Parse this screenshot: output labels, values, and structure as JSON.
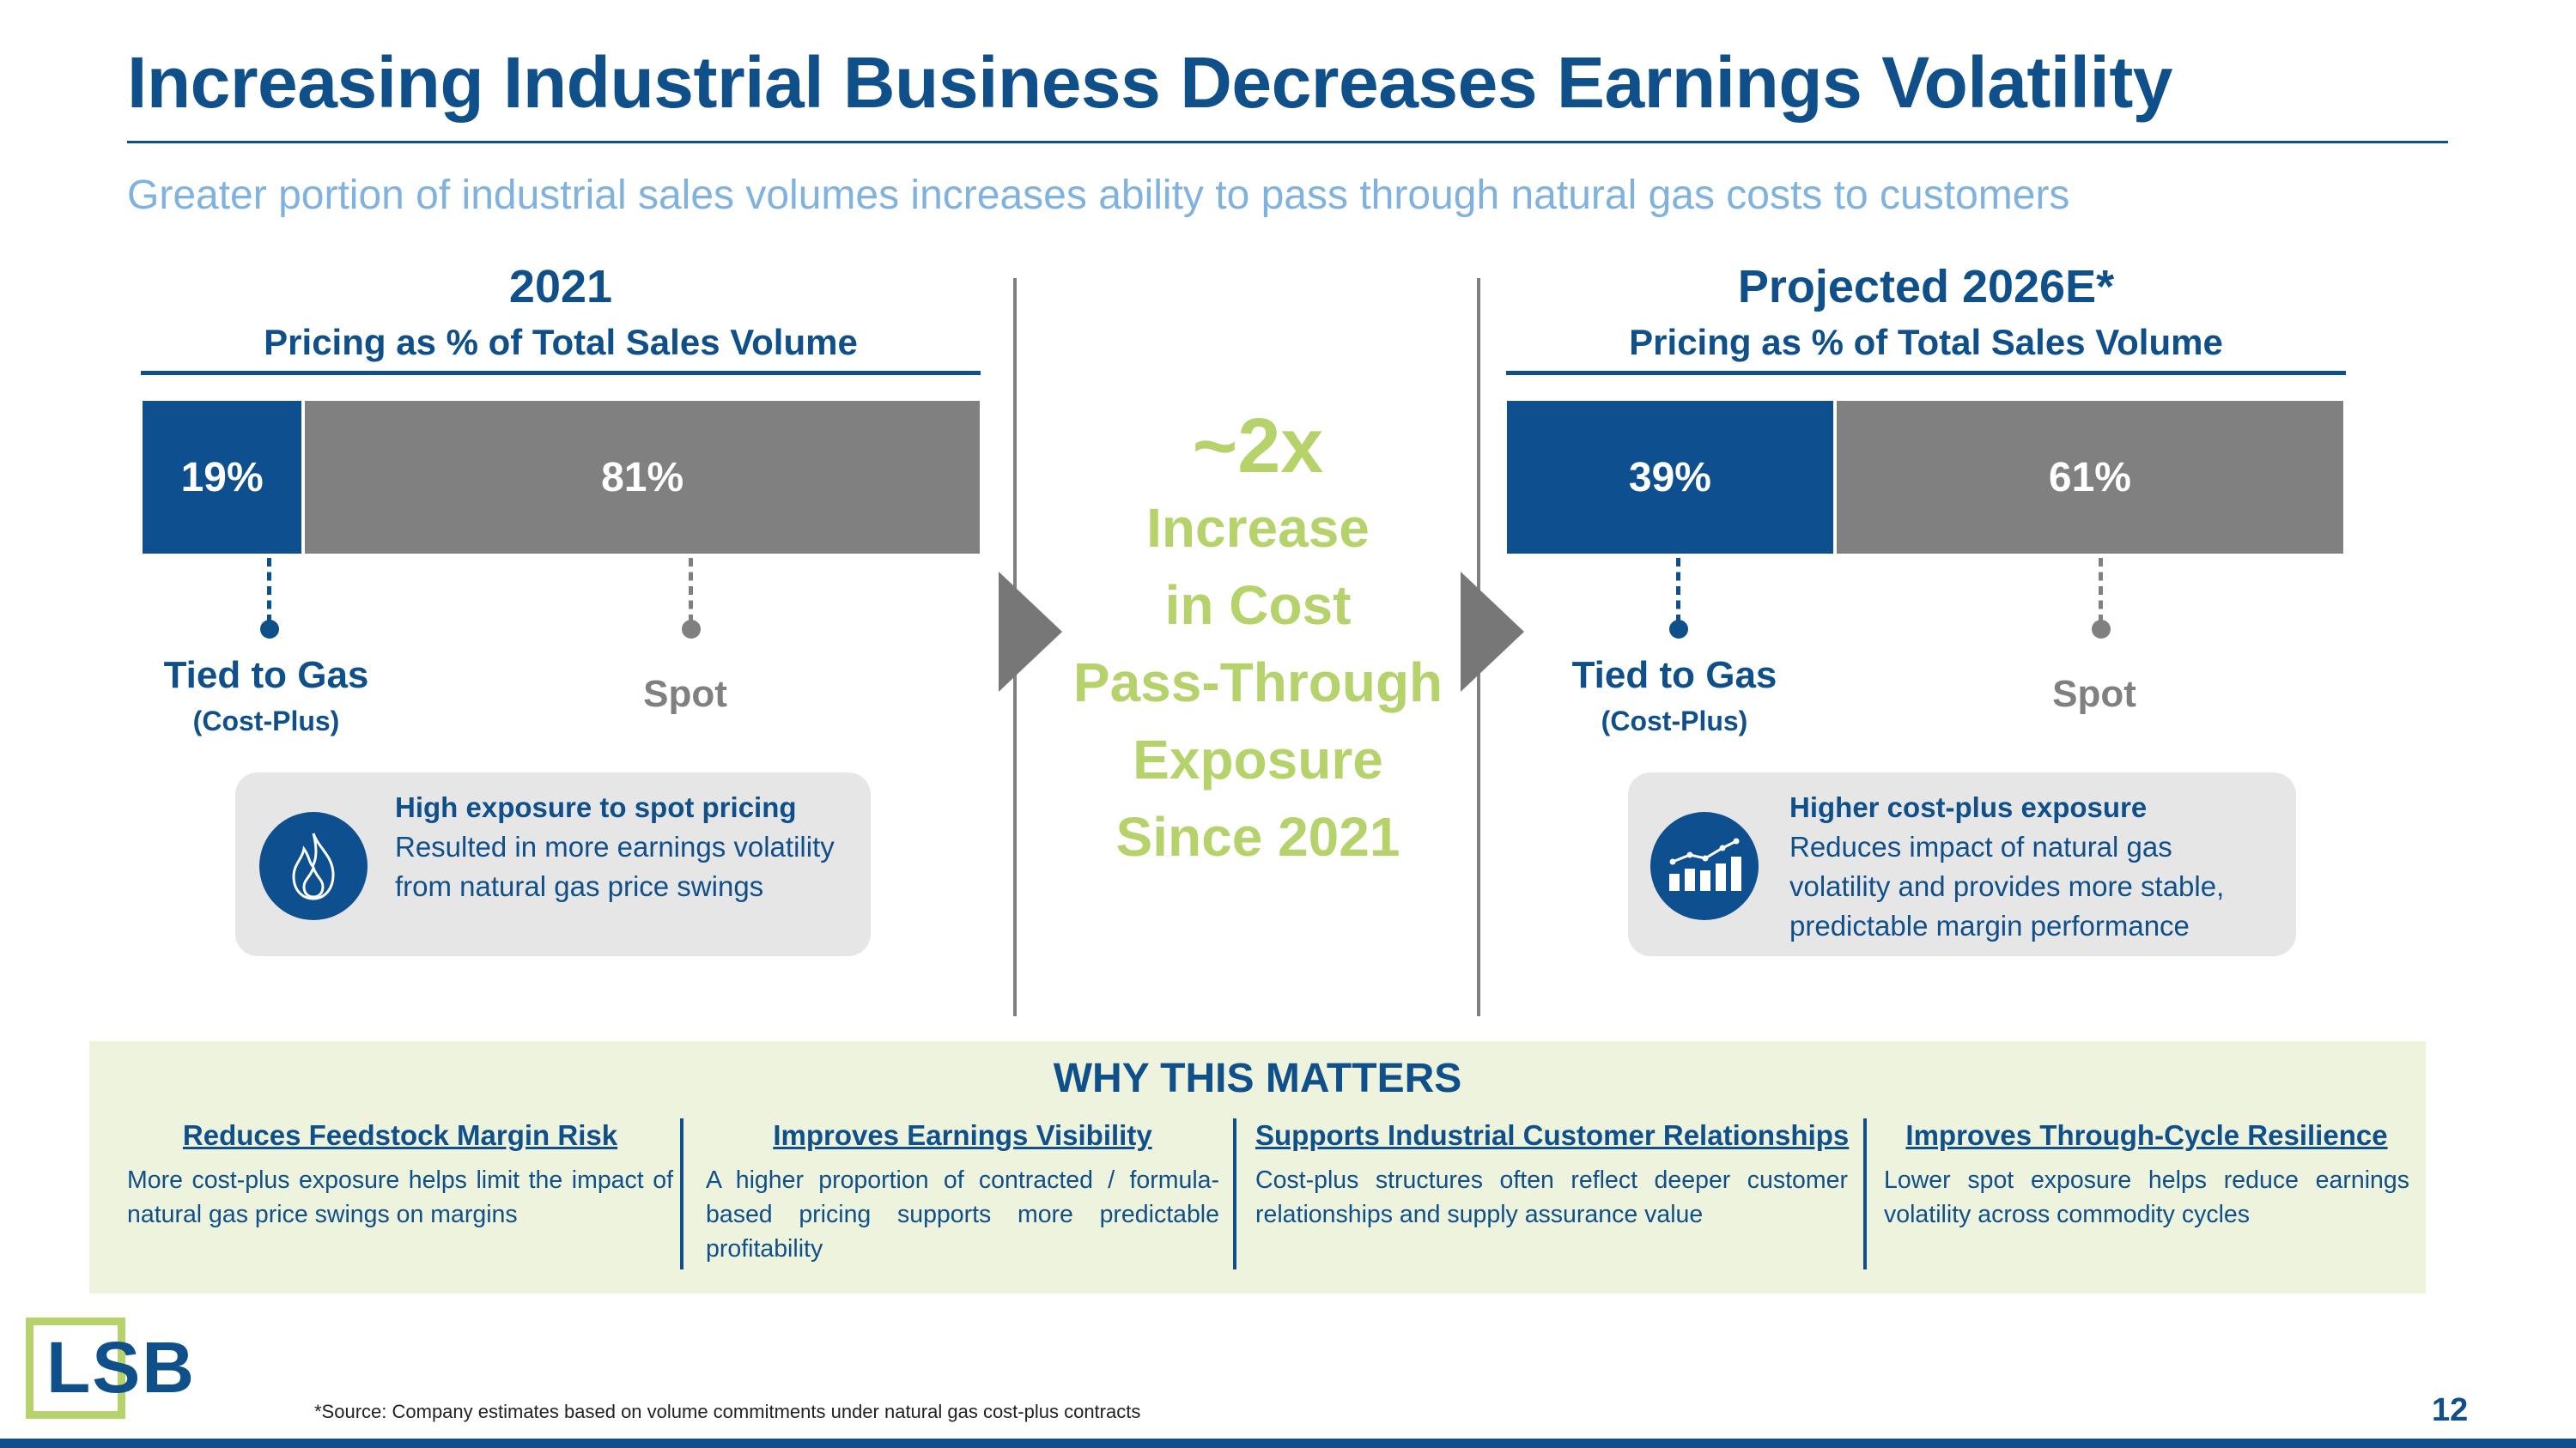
{
  "slide": {
    "title": "Increasing Industrial Business Decreases Earnings Volatility",
    "subtitle": "Greater portion of industrial sales volumes increases ability to pass through natural gas costs to customers",
    "page_number": "12",
    "footnote": "*Source: Company estimates based on volume commitments under natural gas cost-plus contracts",
    "logo_text": "LSB"
  },
  "colors": {
    "primary_blue": "#0f4f8a",
    "bar_blue": "#0d4f8f",
    "bar_gray": "#808080",
    "accent_green": "#b5d36a",
    "subtitle_blue": "#7fb2df",
    "box_gray": "#e6e6e6",
    "why_bg": "#edf3dc"
  },
  "left_panel": {
    "year": "2021",
    "caption": "Pricing as % of Total Sales Volume",
    "tied_pct_label": "19%",
    "spot_pct_label": "81%",
    "tied_share": 0.19,
    "spot_share": 0.81,
    "tied_label": "Tied to Gas",
    "tied_sublabel": "(Cost-Plus)",
    "spot_label": "Spot",
    "box": {
      "icon": "flame-icon",
      "heading": "High exposure to spot pricing",
      "body": "Resulted in more earnings volatility from natural gas price swings"
    }
  },
  "center": {
    "big": "~2x",
    "lines": [
      "Increase",
      "in Cost",
      "Pass-Through",
      "Exposure",
      "Since 2021"
    ]
  },
  "right_panel": {
    "year": "Projected 2026E*",
    "caption": "Pricing as % of Total Sales Volume",
    "tied_pct_label": "39%",
    "spot_pct_label": "61%",
    "tied_share": 0.39,
    "spot_share": 0.61,
    "tied_label": "Tied to Gas",
    "tied_sublabel": "(Cost-Plus)",
    "spot_label": "Spot",
    "box": {
      "icon": "growth-chart-icon",
      "heading": "Higher cost-plus exposure",
      "body": "Reduces impact of natural gas volatility and provides more stable, predictable margin performance"
    }
  },
  "why": {
    "title": "WHY THIS MATTERS",
    "columns": [
      {
        "heading": "Reduces Feedstock Margin Risk",
        "body": "More cost-plus exposure helps limit the impact of natural gas price swings on margins"
      },
      {
        "heading": "Improves Earnings Visibility",
        "body": "A higher proportion of contracted / formula-based pricing supports more predictable profitability"
      },
      {
        "heading": "Supports Industrial Customer Relationships",
        "body": "Cost-plus structures often reflect deeper customer relationships and supply assurance value"
      },
      {
        "heading": "Improves Through-Cycle Resilience",
        "body": "Lower spot exposure helps reduce earnings volatility across commodity cycles"
      }
    ]
  }
}
